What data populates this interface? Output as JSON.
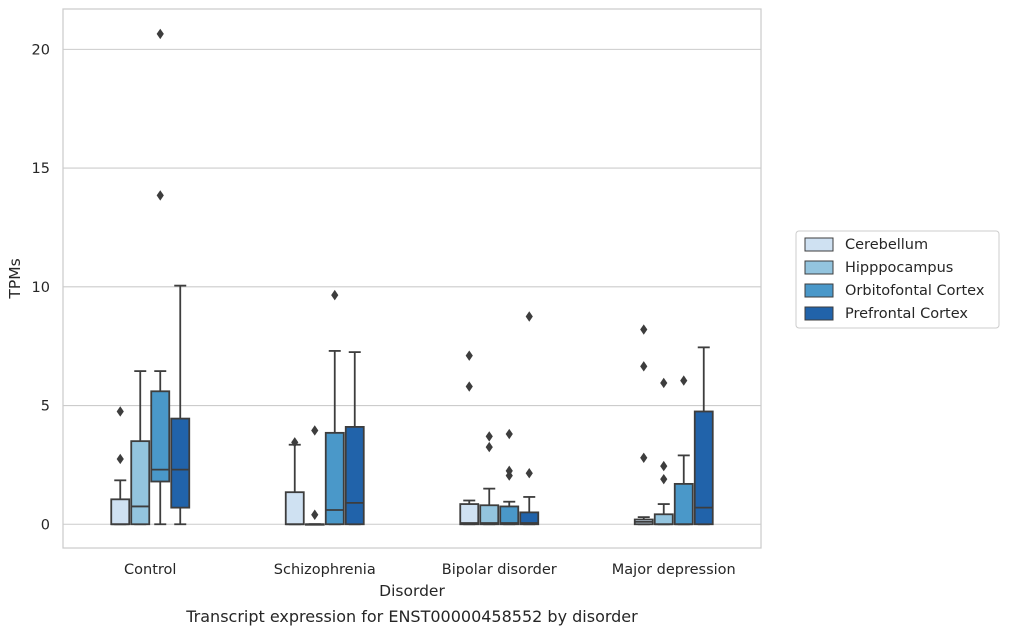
{
  "caption": "Transcript expression for ENST00000458552 by disorder",
  "chart_data": {
    "type": "box",
    "xlabel": "Disorder",
    "ylabel": "TPMs",
    "ylim": [
      -1,
      21.7
    ],
    "yticks": [
      0,
      5,
      10,
      15,
      20
    ],
    "grid": "horizontal",
    "legend_position": "right",
    "categories": [
      "Control",
      "Schizophrenia",
      "Bipolar disorder",
      "Major depression"
    ],
    "series": [
      {
        "name": "Cerebellum",
        "color": "#cfe1f2",
        "boxes": [
          {
            "q1": 0,
            "median": 0,
            "q3": 1.05,
            "whislo": 0,
            "whishi": 1.85,
            "fliers": [
              2.75,
              4.75
            ]
          },
          {
            "q1": 0,
            "median": 0,
            "q3": 1.35,
            "whislo": 0,
            "whishi": 3.35,
            "fliers": [
              3.45
            ]
          },
          {
            "q1": 0,
            "median": 0.05,
            "q3": 0.85,
            "whislo": 0,
            "whishi": 1.0,
            "fliers": [
              5.8,
              7.1
            ]
          },
          {
            "q1": 0,
            "median": 0.1,
            "q3": 0.2,
            "whislo": 0,
            "whishi": 0.3,
            "fliers": [
              2.8,
              6.65,
              8.2
            ]
          }
        ]
      },
      {
        "name": "Hipppocampus",
        "color": "#93c4de",
        "boxes": [
          {
            "q1": 0,
            "median": 0.75,
            "q3": 3.5,
            "whislo": 0,
            "whishi": 6.45,
            "fliers": []
          },
          {
            "q1": 0,
            "median": 0,
            "q3": 0,
            "whislo": 0,
            "whishi": 0,
            "fliers": [
              0.4,
              3.95
            ]
          },
          {
            "q1": 0,
            "median": 0.05,
            "q3": 0.8,
            "whislo": 0,
            "whishi": 1.5,
            "fliers": [
              3.25,
              3.7
            ]
          },
          {
            "q1": 0,
            "median": 0,
            "q3": 0.42,
            "whislo": 0,
            "whishi": 0.85,
            "fliers": [
              1.9,
              2.45,
              5.95
            ]
          }
        ]
      },
      {
        "name": "Orbitofontal Cortex",
        "color": "#4a98c9",
        "boxes": [
          {
            "q1": 1.8,
            "median": 2.3,
            "q3": 5.6,
            "whislo": 0,
            "whishi": 6.45,
            "fliers": [
              13.85,
              20.65
            ]
          },
          {
            "q1": 0,
            "median": 0.6,
            "q3": 3.85,
            "whislo": 0,
            "whishi": 7.3,
            "fliers": [
              9.65
            ]
          },
          {
            "q1": 0,
            "median": 0.05,
            "q3": 0.75,
            "whislo": 0,
            "whishi": 0.95,
            "fliers": [
              2.05,
              2.25,
              3.8
            ]
          },
          {
            "q1": 0,
            "median": 0,
            "q3": 1.7,
            "whislo": 0,
            "whishi": 2.9,
            "fliers": [
              6.05
            ]
          }
        ]
      },
      {
        "name": "Prefrontal Cortex",
        "color": "#2163aa",
        "boxes": [
          {
            "q1": 0.7,
            "median": 2.3,
            "q3": 4.45,
            "whislo": 0,
            "whishi": 10.05,
            "fliers": []
          },
          {
            "q1": 0,
            "median": 0.9,
            "q3": 4.1,
            "whislo": 0,
            "whishi": 7.25,
            "fliers": []
          },
          {
            "q1": 0,
            "median": 0.05,
            "q3": 0.5,
            "whislo": 0,
            "whishi": 1.15,
            "fliers": [
              2.15,
              8.75
            ]
          },
          {
            "q1": 0,
            "median": 0.7,
            "q3": 4.75,
            "whislo": 0,
            "whishi": 7.45,
            "fliers": []
          }
        ]
      }
    ]
  }
}
